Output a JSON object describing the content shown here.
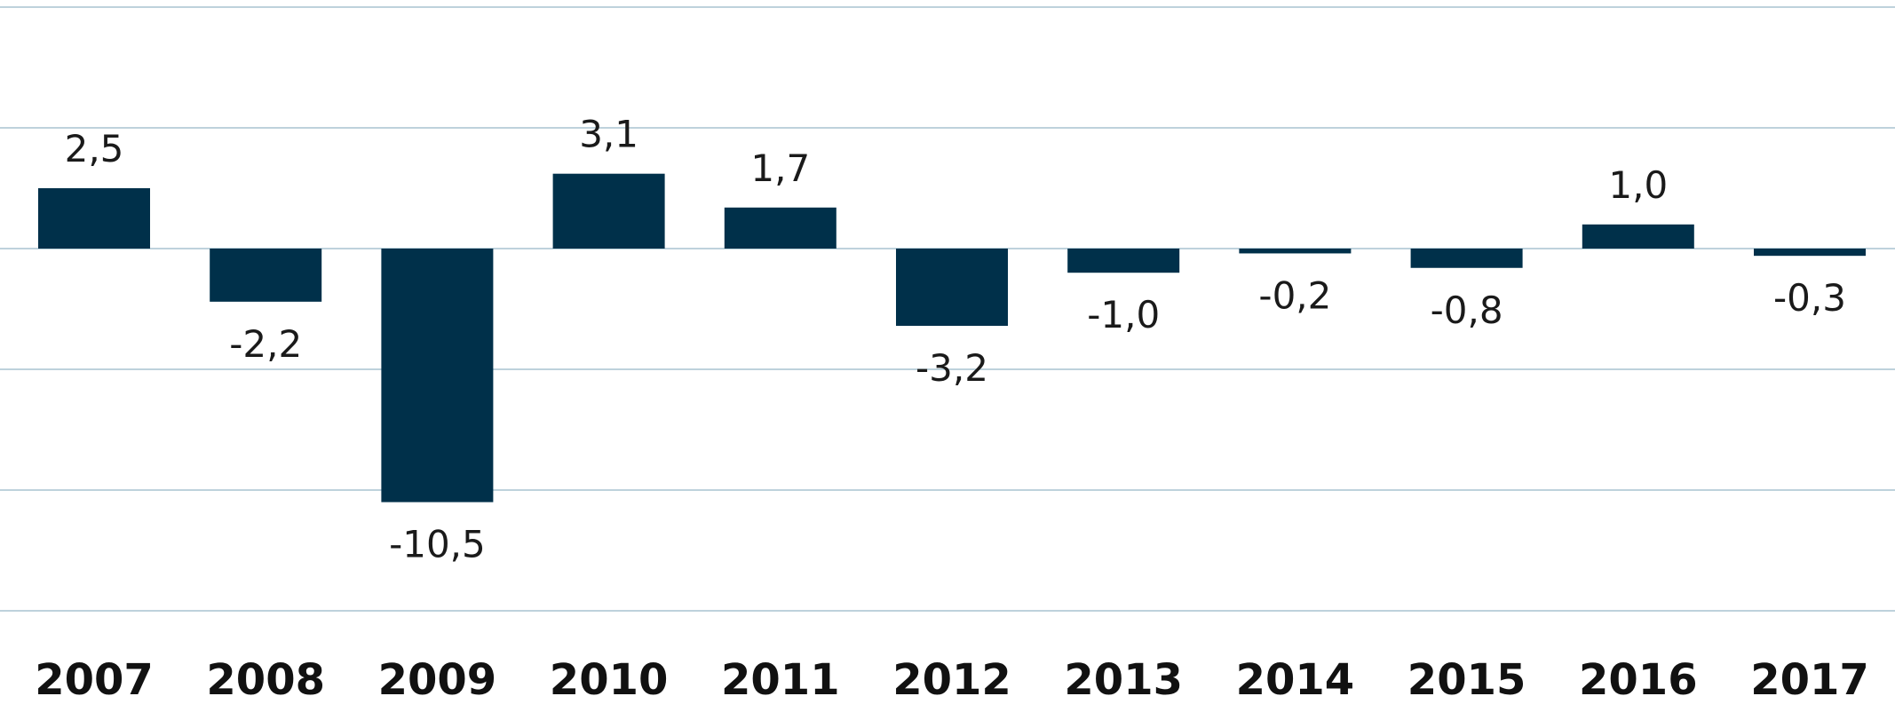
{
  "chart_data": {
    "type": "bar",
    "categories": [
      "2007",
      "2008",
      "2009",
      "2010",
      "2011",
      "2012",
      "2013",
      "2014",
      "2015",
      "2016",
      "2017"
    ],
    "series": [
      {
        "values": [
          2.5,
          -2.2,
          -10.5,
          3.1,
          1.7,
          -3.2,
          -1.0,
          -0.2,
          -0.8,
          1.0,
          -0.3
        ],
        "labels": [
          "2,5",
          "-2,2",
          "-10,5",
          "3,1",
          "1,7",
          "-3,2",
          "-1,0",
          "-0,2",
          "-0,8",
          "1,0",
          "-0,3"
        ]
      }
    ],
    "ylim": [
      -15,
      10
    ],
    "gridlines": [
      10,
      5,
      0,
      -5,
      -10,
      -15
    ],
    "grid": true,
    "legend": "none",
    "title": "",
    "xlabel": "",
    "ylabel": "",
    "colors": {
      "bar": "#00304a",
      "grid": "#a9c4d0"
    }
  }
}
